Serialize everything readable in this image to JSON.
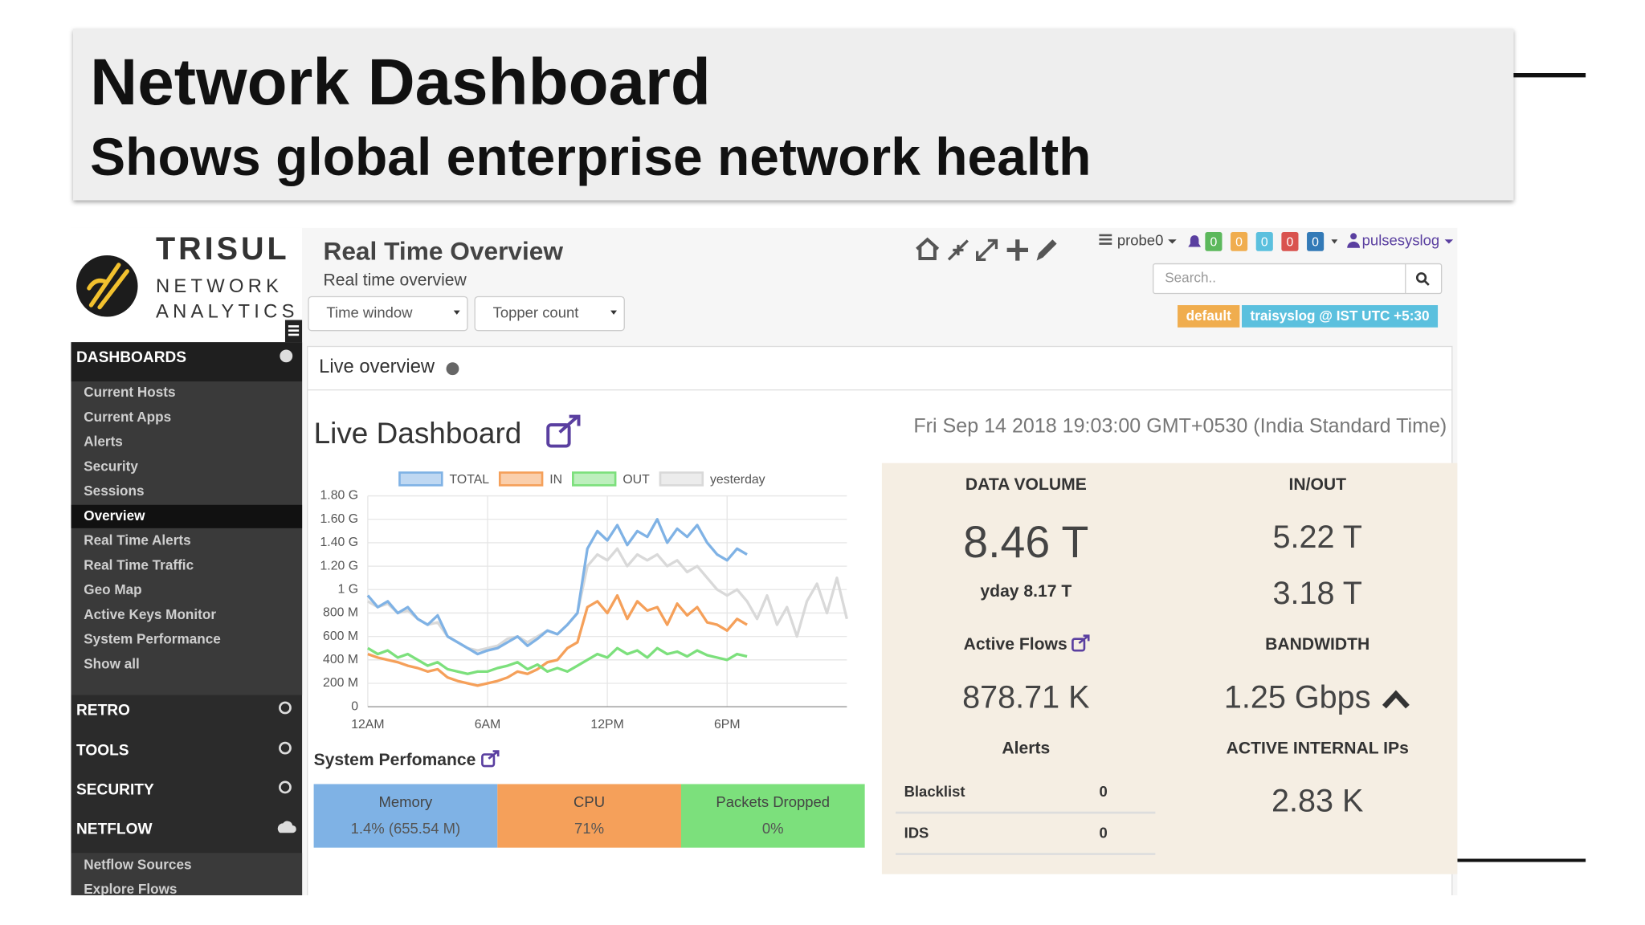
{
  "header": {
    "title": "Network Dashboard",
    "subtitle": "Shows global enterprise network health"
  },
  "brand": {
    "name": "TRISUL",
    "tagline": [
      "NETWORK",
      "ANALYTICS"
    ]
  },
  "sidebar": {
    "dashboards": {
      "title": "DASHBOARDS",
      "active_item": 5,
      "items": [
        "Current Hosts",
        "Current Apps",
        "Alerts",
        "Security",
        "Sessions",
        "Overview",
        "Real Time Alerts",
        "Real Time Traffic",
        "Geo Map",
        "Active Keys Monitor",
        "System Performance",
        "Show all"
      ]
    },
    "collapsed": [
      "RETRO",
      "TOOLS",
      "SECURITY"
    ],
    "netflow": {
      "title": "NETFLOW",
      "items": [
        "Netflow Sources",
        "Explore Flows"
      ]
    }
  },
  "topbar": {
    "title": "Real Time Overview",
    "subtitle": "Real time overview",
    "selects": [
      "Time window",
      "Topper count"
    ],
    "probe": "probe0",
    "badges": [
      {
        "value": 0,
        "color": "#5cb85c"
      },
      {
        "value": 0,
        "color": "#f0ad4e"
      },
      {
        "value": 0,
        "color": "#5bc0de"
      },
      {
        "value": 0,
        "color": "#d9534f"
      },
      {
        "value": 0,
        "color": "#337ab7"
      }
    ],
    "user": "pulsesyslog",
    "search_placeholder": "Search..",
    "tags": [
      {
        "text": "default",
        "color": "#f0ad4e"
      },
      {
        "text": "traisyslog @ IST UTC +5:30",
        "color": "#5bc0de"
      }
    ]
  },
  "panel": {
    "heading": "Live overview",
    "title": "Live Dashboard",
    "timestamp": "Fri Sep 14 2018 19:03:00 GMT+0530 (India Standard Time)"
  },
  "chart_data": {
    "type": "line",
    "x": [
      0,
      0.5,
      1,
      1.5,
      2,
      2.5,
      3,
      3.5,
      4,
      4.5,
      5,
      5.5,
      6,
      6.5,
      7,
      7.5,
      8,
      8.5,
      9,
      9.5,
      10,
      10.5,
      11,
      11.5,
      12,
      12.5,
      13,
      13.5,
      14,
      14.5,
      15,
      15.5,
      16,
      16.5,
      17,
      17.5,
      18,
      18.5,
      19,
      19.5,
      20,
      20.5,
      21,
      21.5,
      22,
      22.5,
      23,
      23.5,
      24
    ],
    "xlim": [
      0,
      24
    ],
    "xticks": [
      {
        "value": 0,
        "label": "12AM"
      },
      {
        "value": 6,
        "label": "6AM"
      },
      {
        "value": 12,
        "label": "12PM"
      },
      {
        "value": 18,
        "label": "6PM"
      }
    ],
    "ylim": [
      0,
      1.8
    ],
    "yticks": [
      {
        "value": 0,
        "label": "0"
      },
      {
        "value": 0.2,
        "label": "200 M"
      },
      {
        "value": 0.4,
        "label": "400 M"
      },
      {
        "value": 0.6,
        "label": "600 M"
      },
      {
        "value": 0.8,
        "label": "800 M"
      },
      {
        "value": 1.0,
        "label": "1 G"
      },
      {
        "value": 1.2,
        "label": "1.20 G"
      },
      {
        "value": 1.4,
        "label": "1.40 G"
      },
      {
        "value": 1.6,
        "label": "1.60 G"
      },
      {
        "value": 1.8,
        "label": "1.80 G"
      }
    ],
    "grid": true,
    "series": [
      {
        "name": "yesterday",
        "color": "#d9d9d9",
        "values": [
          0.9,
          0.85,
          0.88,
          0.8,
          0.82,
          0.75,
          0.7,
          0.72,
          0.6,
          0.55,
          0.5,
          0.48,
          0.5,
          0.52,
          0.58,
          0.6,
          0.55,
          0.6,
          0.65,
          0.62,
          0.7,
          0.8,
          1.2,
          1.3,
          1.25,
          1.35,
          1.2,
          1.3,
          1.25,
          1.3,
          1.2,
          1.25,
          1.15,
          1.2,
          1.1,
          1.0,
          0.95,
          1.0,
          0.9,
          0.75,
          0.95,
          0.7,
          0.85,
          0.6,
          0.9,
          1.05,
          0.8,
          1.1,
          0.75
        ]
      },
      {
        "name": "TOTAL",
        "color": "#7fb2e5",
        "values": [
          0.95,
          0.85,
          0.9,
          0.8,
          0.85,
          0.75,
          0.7,
          0.78,
          0.6,
          0.55,
          0.5,
          0.45,
          0.48,
          0.5,
          0.55,
          0.6,
          0.52,
          0.58,
          0.65,
          0.62,
          0.7,
          0.8,
          1.35,
          1.5,
          1.42,
          1.55,
          1.38,
          1.5,
          1.45,
          1.6,
          1.4,
          1.52,
          1.45,
          1.55,
          1.4,
          1.3,
          1.25,
          1.35,
          1.3,
          null,
          null,
          null,
          null,
          null,
          null,
          null,
          null,
          null,
          null
        ]
      },
      {
        "name": "IN",
        "color": "#f5a05a",
        "values": [
          0.45,
          0.42,
          0.4,
          0.38,
          0.35,
          0.33,
          0.3,
          0.32,
          0.25,
          0.22,
          0.2,
          0.18,
          0.2,
          0.22,
          0.25,
          0.3,
          0.28,
          0.32,
          0.38,
          0.4,
          0.5,
          0.55,
          0.85,
          0.9,
          0.8,
          0.95,
          0.75,
          0.9,
          0.82,
          0.85,
          0.7,
          0.88,
          0.78,
          0.85,
          0.72,
          0.7,
          0.65,
          0.75,
          0.7,
          null,
          null,
          null,
          null,
          null,
          null,
          null,
          null,
          null,
          null
        ]
      },
      {
        "name": "OUT",
        "color": "#7ce07c",
        "values": [
          0.5,
          0.45,
          0.48,
          0.42,
          0.45,
          0.4,
          0.35,
          0.38,
          0.32,
          0.3,
          0.28,
          0.3,
          0.3,
          0.33,
          0.35,
          0.38,
          0.32,
          0.36,
          0.3,
          0.33,
          0.3,
          0.35,
          0.4,
          0.45,
          0.42,
          0.5,
          0.45,
          0.48,
          0.42,
          0.5,
          0.45,
          0.47,
          0.43,
          0.48,
          0.44,
          0.42,
          0.4,
          0.45,
          0.43,
          null,
          null,
          null,
          null,
          null,
          null,
          null,
          null,
          null,
          null
        ]
      }
    ],
    "legend_order": [
      1,
      2,
      3,
      0
    ]
  },
  "stats": {
    "data_volume": {
      "label": "DATA VOLUME",
      "value": "8.46 T",
      "yday": "yday 8.17 T"
    },
    "inout": {
      "label": "IN/OUT",
      "in": "5.22 T",
      "out": "3.18 T"
    },
    "active_flows": {
      "label": "Active Flows",
      "value": "878.71 K"
    },
    "bandwidth": {
      "label": "BANDWIDTH",
      "value": "1.25 Gbps"
    },
    "alerts": {
      "label": "Alerts",
      "rows": [
        [
          "Blacklist",
          0
        ],
        [
          "IDS",
          0
        ]
      ]
    },
    "internal_ips": {
      "label": "ACTIVE INTERNAL IPs",
      "value": "2.83 K"
    }
  },
  "system": {
    "title": "System Perfomance",
    "cells": [
      {
        "label": "Memory",
        "value": "1.4% (655.54 M)",
        "color": "#7fb2e5"
      },
      {
        "label": "CPU",
        "value": "71%",
        "color": "#f5a05a"
      },
      {
        "label": "Packets Dropped",
        "value": "0%",
        "color": "#7ce07c"
      }
    ]
  }
}
